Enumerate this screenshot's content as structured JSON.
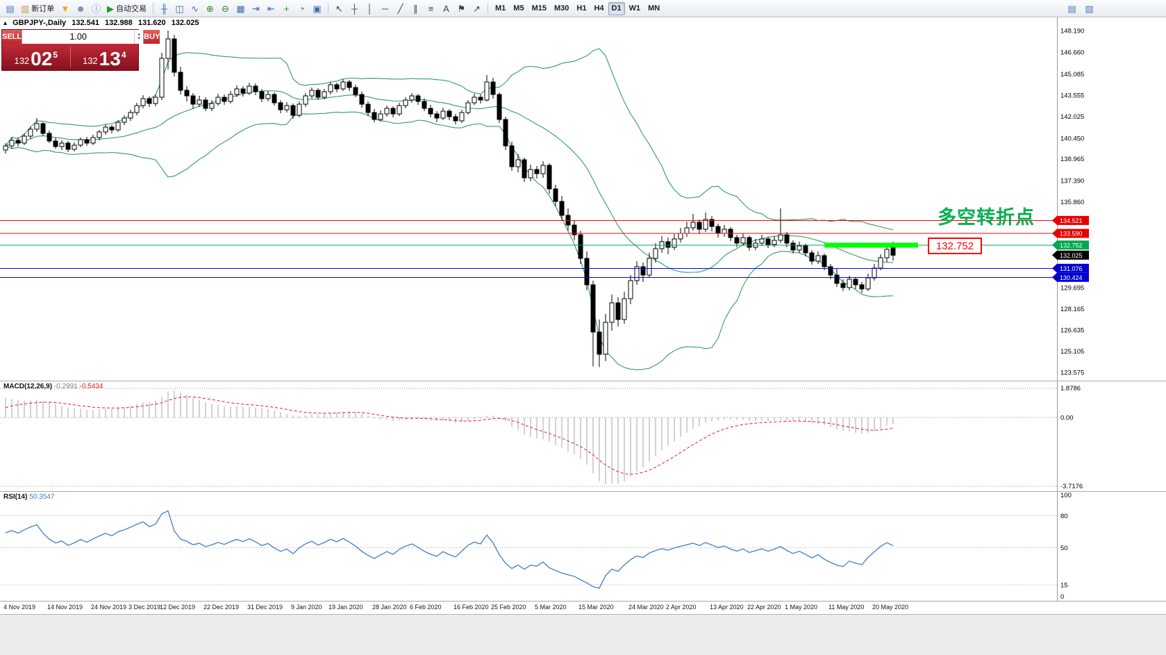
{
  "toolbar": {
    "groups": [
      {
        "name": "standard",
        "items": [
          {
            "name": "new-chart-icon",
            "glyph": "▤",
            "color": "#4e7ab5"
          },
          {
            "name": "new-order-button",
            "glyph": "▥",
            "color": "#c59a3f",
            "label": "新订单"
          },
          {
            "name": "market-icon",
            "glyph": "▼",
            "color": "#f0a800"
          },
          {
            "name": "signals-icon",
            "glyph": "☻",
            "color": "#6a8cb0"
          },
          {
            "name": "support-icon",
            "glyph": "ⓘ",
            "color": "#6a8cb0"
          },
          {
            "name": "autotrading-button",
            "glyph": "▶",
            "color": "#17a317",
            "label": "自动交易"
          }
        ]
      },
      {
        "name": "charts",
        "items": [
          {
            "name": "bar-chart-icon",
            "glyph": "╫",
            "color": "#3c6ea5"
          },
          {
            "name": "candlestick-chart-icon",
            "glyph": "◫",
            "color": "#3c6ea5"
          },
          {
            "name": "line-chart-icon",
            "glyph": "∿",
            "color": "#3c6ea5"
          },
          {
            "name": "zoom-in-icon",
            "glyph": "⊕",
            "color": "#2f7d2f"
          },
          {
            "name": "zoom-out-icon",
            "glyph": "⊖",
            "color": "#2f7d2f"
          },
          {
            "name": "tile-windows-icon",
            "glyph": "▦",
            "color": "#3c6ea5"
          },
          {
            "name": "auto-scroll-icon",
            "glyph": "⇥",
            "color": "#3c6ea5"
          },
          {
            "name": "chart-shift-icon",
            "glyph": "⇤",
            "color": "#3c6ea5"
          },
          {
            "name": "indicators-icon",
            "glyph": "+",
            "color": "#0fa00f"
          },
          {
            "name": "periods-icon",
            "glyph": "◔",
            "color": "#3c6ea5"
          },
          {
            "name": "templates-icon",
            "glyph": "▣",
            "color": "#3c6ea5"
          }
        ]
      },
      {
        "name": "objects",
        "items": [
          {
            "name": "cursor-icon",
            "glyph": "↖",
            "color": "#444444"
          },
          {
            "name": "crosshair-icon",
            "glyph": "┼",
            "color": "#444444"
          },
          {
            "name": "vertical-line-icon",
            "glyph": "│",
            "color": "#444444"
          },
          {
            "name": "horizontal-line-icon",
            "glyph": "─",
            "color": "#444444"
          },
          {
            "name": "trendline-icon",
            "glyph": "╱",
            "color": "#444444"
          },
          {
            "name": "channel-icon",
            "glyph": "∥",
            "color": "#444444"
          },
          {
            "name": "fibonacci-icon",
            "glyph": "≡",
            "color": "#444444"
          },
          {
            "name": "text-icon",
            "glyph": "A",
            "color": "#444444"
          },
          {
            "name": "label-icon",
            "glyph": "⚑",
            "color": "#444444"
          },
          {
            "name": "arrows-icon",
            "glyph": "↗",
            "color": "#444444"
          }
        ]
      },
      {
        "name": "timeframes",
        "items": [
          {
            "name": "timeframe-m1",
            "label": "M1"
          },
          {
            "name": "timeframe-m5",
            "label": "M5"
          },
          {
            "name": "timeframe-m15",
            "label": "M15"
          },
          {
            "name": "timeframe-m30",
            "label": "M30"
          },
          {
            "name": "timeframe-h1",
            "label": "H1"
          },
          {
            "name": "timeframe-h4",
            "label": "H4"
          },
          {
            "name": "timeframe-d1",
            "label": "D1",
            "active": true
          },
          {
            "name": "timeframe-w1",
            "label": "W1"
          },
          {
            "name": "timeframe-mn",
            "label": "MN"
          }
        ]
      }
    ],
    "right_items": [
      {
        "name": "data-window-icon",
        "glyph": "▤",
        "color": "#4e7ab5"
      },
      {
        "name": "strategy-tester-icon",
        "glyph": "▧",
        "color": "#4e7ab5"
      }
    ]
  },
  "symbol_info": {
    "name_period": "GBPJPY-,Daily",
    "open": "132.541",
    "high": "132.988",
    "low": "131.620",
    "close": "132.025"
  },
  "trade_panel": {
    "sell_label": "SELL",
    "buy_label": "BUY",
    "volume": "1.00",
    "bid_small": "132",
    "bid_big": "02",
    "bid_sup": "5",
    "ask_small": "132",
    "ask_big": "13",
    "ask_sup": "4"
  },
  "annotations": {
    "turning_point": "多空转折点",
    "price_call out_note": "",
    "price_callout": "132.752"
  },
  "macd": {
    "label": "MACD(12,26,9)",
    "values": [
      "-0.2991",
      "-0.5434"
    ],
    "axis": [
      "1.8786",
      "0.00",
      "-3.7176"
    ]
  },
  "rsi": {
    "label": "RSI(14)",
    "value": "50.3547",
    "axis": [
      "100",
      "80",
      "50",
      "15",
      "0"
    ],
    "levels": [
      80,
      50,
      15
    ]
  },
  "chart_data": {
    "type": "candlestick",
    "symbol": "GBPJPY",
    "timeframe": "Daily",
    "colors": {
      "bollinger": "#2e9e5e",
      "bull_body": "#ffffff",
      "bear_body": "#000000",
      "outline": "#000000",
      "macd_histogram": "#a6a6a6",
      "macd_signal": "#e01b1b",
      "rsi_line": "#3f7cc7",
      "highlight": "#00ff00",
      "annotation_green": "#00b050",
      "annotation_red": "#ff0000",
      "current_price_flag": "#000000"
    },
    "price_axis_ticks": [
      148.19,
      146.66,
      145.085,
      143.555,
      142.025,
      140.45,
      138.965,
      137.39,
      135.86,
      129.695,
      128.165,
      126.635,
      125.105,
      123.575
    ],
    "current_price": 132.025,
    "horizontal_lines": [
      {
        "price": 134.521,
        "color": "#ff0000",
        "flag_color": "#e80000"
      },
      {
        "price": 133.59,
        "color": "#ff0000",
        "flag_color": "#e80000"
      },
      {
        "price": 132.752,
        "color": "#00a651",
        "flag_color": "#00a651"
      },
      {
        "price": 131.076,
        "color": "#0000ff",
        "flag_color": "#0000d0"
      },
      {
        "price": 130.424,
        "color": "#0000ff",
        "flag_color": "#0000d0"
      }
    ],
    "highlight_segment": {
      "price": 132.752,
      "from_index": 131,
      "to_index": 146,
      "color": "#00ff00"
    },
    "bollinger": {
      "period": 20,
      "deviation": 2
    },
    "time_labels": [
      {
        "index": 0,
        "text": "4 Nov 2019"
      },
      {
        "index": 7,
        "text": "14 Nov 2019"
      },
      {
        "index": 14,
        "text": "24 Nov 2019"
      },
      {
        "index": 20,
        "text": "3 Dec 2019"
      },
      {
        "index": 25,
        "text": "12 Dec 2019"
      },
      {
        "index": 32,
        "text": "22 Dec 2019"
      },
      {
        "index": 39,
        "text": "31 Dec 2019"
      },
      {
        "index": 46,
        "text": "9 Jan 2020"
      },
      {
        "index": 52,
        "text": "19 Jan 2020"
      },
      {
        "index": 59,
        "text": "28 Jan 2020"
      },
      {
        "index": 65,
        "text": "6 Feb 2020"
      },
      {
        "index": 72,
        "text": "16 Feb 2020"
      },
      {
        "index": 78,
        "text": "25 Feb 2020"
      },
      {
        "index": 85,
        "text": "5 Mar 2020"
      },
      {
        "index": 92,
        "text": "15 Mar 2020"
      },
      {
        "index": 100,
        "text": "24 Mar 2020"
      },
      {
        "index": 106,
        "text": "2 Apr 2020"
      },
      {
        "index": 113,
        "text": "13 Apr 2020"
      },
      {
        "index": 119,
        "text": "22 Apr 2020"
      },
      {
        "index": 125,
        "text": "1 May 2020"
      },
      {
        "index": 132,
        "text": "11 May 2020"
      },
      {
        "index": 139,
        "text": "20 May 2020"
      }
    ],
    "candles": [
      [
        139.6,
        140.1,
        139.35,
        139.9
      ],
      [
        139.9,
        140.55,
        139.7,
        140.3
      ],
      [
        140.3,
        140.5,
        139.85,
        140.1
      ],
      [
        140.1,
        140.8,
        139.95,
        140.6
      ],
      [
        140.6,
        141.3,
        140.4,
        141.1
      ],
      [
        141.1,
        141.9,
        140.9,
        141.5
      ],
      [
        141.5,
        141.6,
        140.6,
        140.8
      ],
      [
        140.8,
        141.0,
        140.1,
        140.25
      ],
      [
        140.25,
        140.5,
        139.7,
        139.85
      ],
      [
        139.85,
        140.3,
        139.6,
        140.1
      ],
      [
        140.1,
        140.25,
        139.45,
        139.65
      ],
      [
        139.65,
        140.15,
        139.5,
        139.95
      ],
      [
        139.95,
        140.5,
        139.8,
        140.35
      ],
      [
        140.35,
        140.55,
        139.9,
        140.1
      ],
      [
        140.1,
        140.7,
        139.95,
        140.5
      ],
      [
        140.5,
        141.05,
        140.3,
        140.9
      ],
      [
        140.9,
        141.45,
        140.7,
        141.25
      ],
      [
        141.25,
        141.4,
        140.8,
        141.05
      ],
      [
        141.05,
        141.75,
        140.9,
        141.6
      ],
      [
        141.6,
        142.1,
        141.4,
        141.9
      ],
      [
        141.9,
        142.5,
        141.7,
        142.3
      ],
      [
        142.3,
        143.0,
        142.1,
        142.8
      ],
      [
        142.8,
        143.55,
        142.6,
        143.3
      ],
      [
        143.3,
        143.45,
        142.7,
        142.95
      ],
      [
        142.95,
        143.6,
        142.75,
        143.4
      ],
      [
        143.4,
        146.6,
        143.2,
        146.2
      ],
      [
        146.2,
        148.19,
        145.4,
        147.6
      ],
      [
        147.6,
        147.9,
        144.9,
        145.2
      ],
      [
        145.2,
        145.6,
        143.6,
        143.9
      ],
      [
        143.9,
        144.2,
        143.1,
        143.5
      ],
      [
        143.5,
        143.7,
        142.6,
        142.9
      ],
      [
        142.9,
        143.5,
        142.7,
        143.2
      ],
      [
        143.2,
        143.4,
        142.4,
        142.6
      ],
      [
        142.6,
        143.2,
        142.4,
        142.95
      ],
      [
        142.95,
        143.65,
        142.8,
        143.4
      ],
      [
        143.4,
        143.6,
        142.85,
        143.1
      ],
      [
        143.1,
        143.85,
        142.95,
        143.6
      ],
      [
        143.6,
        144.25,
        143.4,
        144.0
      ],
      [
        144.0,
        144.2,
        143.45,
        143.7
      ],
      [
        143.7,
        144.45,
        143.55,
        144.2
      ],
      [
        144.2,
        144.4,
        143.55,
        143.8
      ],
      [
        143.8,
        144.0,
        143.05,
        143.3
      ],
      [
        143.3,
        143.85,
        143.1,
        143.6
      ],
      [
        143.6,
        143.75,
        142.8,
        143.0
      ],
      [
        143.0,
        143.2,
        142.25,
        142.5
      ],
      [
        142.5,
        143.05,
        142.3,
        142.8
      ],
      [
        142.8,
        142.95,
        141.85,
        142.1
      ],
      [
        142.1,
        143.1,
        141.95,
        142.9
      ],
      [
        142.9,
        143.7,
        142.7,
        143.5
      ],
      [
        143.5,
        144.1,
        143.3,
        143.9
      ],
      [
        143.9,
        144.05,
        143.2,
        143.4
      ],
      [
        143.4,
        144.0,
        143.25,
        143.8
      ],
      [
        143.8,
        144.5,
        143.6,
        144.3
      ],
      [
        144.3,
        144.45,
        143.75,
        144.0
      ],
      [
        144.0,
        144.7,
        143.85,
        144.5
      ],
      [
        144.5,
        144.65,
        143.85,
        144.1
      ],
      [
        144.1,
        144.3,
        143.4,
        143.6
      ],
      [
        143.6,
        143.8,
        142.65,
        142.9
      ],
      [
        142.9,
        143.1,
        142.05,
        142.3
      ],
      [
        142.3,
        142.55,
        141.6,
        141.8
      ],
      [
        141.8,
        142.45,
        141.65,
        142.2
      ],
      [
        142.2,
        142.8,
        142.0,
        142.6
      ],
      [
        142.6,
        142.75,
        141.95,
        142.2
      ],
      [
        142.2,
        143.0,
        142.05,
        142.8
      ],
      [
        142.8,
        143.4,
        142.6,
        143.2
      ],
      [
        143.2,
        143.7,
        143.0,
        143.5
      ],
      [
        143.5,
        143.65,
        142.85,
        143.1
      ],
      [
        143.1,
        143.3,
        142.4,
        142.6
      ],
      [
        142.6,
        142.85,
        141.95,
        142.2
      ],
      [
        142.2,
        142.4,
        141.6,
        141.9
      ],
      [
        141.9,
        142.65,
        141.75,
        142.4
      ],
      [
        142.4,
        142.55,
        141.75,
        142.0
      ],
      [
        142.0,
        142.2,
        141.45,
        141.7
      ],
      [
        141.7,
        142.5,
        141.55,
        142.3
      ],
      [
        142.3,
        143.2,
        142.15,
        143.0
      ],
      [
        143.0,
        143.65,
        142.85,
        143.4
      ],
      [
        143.4,
        143.6,
        142.95,
        143.2
      ],
      [
        143.2,
        145.0,
        143.1,
        144.5
      ],
      [
        144.5,
        144.8,
        143.3,
        143.6
      ],
      [
        143.6,
        143.75,
        141.55,
        141.8
      ],
      [
        141.8,
        142.0,
        139.6,
        139.9
      ],
      [
        139.9,
        140.2,
        138.1,
        138.4
      ],
      [
        138.4,
        139.3,
        138.0,
        138.9
      ],
      [
        138.9,
        139.05,
        137.3,
        137.6
      ],
      [
        137.6,
        138.55,
        137.35,
        138.2
      ],
      [
        138.2,
        138.45,
        137.55,
        137.9
      ],
      [
        137.9,
        138.8,
        137.6,
        138.5
      ],
      [
        138.5,
        138.65,
        136.45,
        136.8
      ],
      [
        136.8,
        137.1,
        135.55,
        135.9
      ],
      [
        135.9,
        136.3,
        134.55,
        134.9
      ],
      [
        134.9,
        135.4,
        133.8,
        134.2
      ],
      [
        134.2,
        134.5,
        133.1,
        133.5
      ],
      [
        133.5,
        133.8,
        131.4,
        131.8
      ],
      [
        131.8,
        132.3,
        129.5,
        129.9
      ],
      [
        129.9,
        130.2,
        124.0,
        126.5
      ],
      [
        126.5,
        127.4,
        123.95,
        124.9
      ],
      [
        124.9,
        127.8,
        124.4,
        127.2
      ],
      [
        127.2,
        129.2,
        126.6,
        128.6
      ],
      [
        128.6,
        129.0,
        126.9,
        127.4
      ],
      [
        127.4,
        129.4,
        127.1,
        128.9
      ],
      [
        128.9,
        130.6,
        128.5,
        130.2
      ],
      [
        130.2,
        131.6,
        129.9,
        131.2
      ],
      [
        131.2,
        131.5,
        130.1,
        130.6
      ],
      [
        130.6,
        132.2,
        130.4,
        131.8
      ],
      [
        131.8,
        132.9,
        131.5,
        132.5
      ],
      [
        132.5,
        133.4,
        132.2,
        133.0
      ],
      [
        133.0,
        133.3,
        132.1,
        132.6
      ],
      [
        132.6,
        133.55,
        132.4,
        133.2
      ],
      [
        133.2,
        134.0,
        132.95,
        133.6
      ],
      [
        133.6,
        134.45,
        133.35,
        134.0
      ],
      [
        134.0,
        135.0,
        133.8,
        134.4
      ],
      [
        134.4,
        134.6,
        133.55,
        133.9
      ],
      [
        133.9,
        135.1,
        133.7,
        134.6
      ],
      [
        134.6,
        134.85,
        133.75,
        134.1
      ],
      [
        134.1,
        134.3,
        133.3,
        133.6
      ],
      [
        133.6,
        134.2,
        133.35,
        133.9
      ],
      [
        133.9,
        134.05,
        133.05,
        133.3
      ],
      [
        133.3,
        133.5,
        132.6,
        132.9
      ],
      [
        132.9,
        133.6,
        132.7,
        133.3
      ],
      [
        133.3,
        133.45,
        132.35,
        132.6
      ],
      [
        132.6,
        133.2,
        132.4,
        132.9
      ],
      [
        132.9,
        133.5,
        132.7,
        133.2
      ],
      [
        133.2,
        133.35,
        132.55,
        132.8
      ],
      [
        132.8,
        133.4,
        132.6,
        133.1
      ],
      [
        133.1,
        135.4,
        132.9,
        133.5
      ],
      [
        133.5,
        133.7,
        132.6,
        132.9
      ],
      [
        132.9,
        133.1,
        132.15,
        132.4
      ],
      [
        132.4,
        133.0,
        132.2,
        132.7
      ],
      [
        132.7,
        132.85,
        131.95,
        132.2
      ],
      [
        132.2,
        132.4,
        131.35,
        131.6
      ],
      [
        131.6,
        132.3,
        131.4,
        132.0
      ],
      [
        132.0,
        132.15,
        130.95,
        131.2
      ],
      [
        131.2,
        131.4,
        130.3,
        130.6
      ],
      [
        130.6,
        131.1,
        129.75,
        130.0
      ],
      [
        130.0,
        130.3,
        129.45,
        129.7
      ],
      [
        129.7,
        130.55,
        129.5,
        130.3
      ],
      [
        130.3,
        130.45,
        129.6,
        129.9
      ],
      [
        129.9,
        130.1,
        129.3,
        129.6
      ],
      [
        129.6,
        130.7,
        129.45,
        130.4
      ],
      [
        130.4,
        131.4,
        130.2,
        131.1
      ],
      [
        131.1,
        132.1,
        130.95,
        131.85
      ],
      [
        131.85,
        132.6,
        131.55,
        132.45
      ],
      [
        132.541,
        132.988,
        131.62,
        132.025
      ]
    ]
  }
}
